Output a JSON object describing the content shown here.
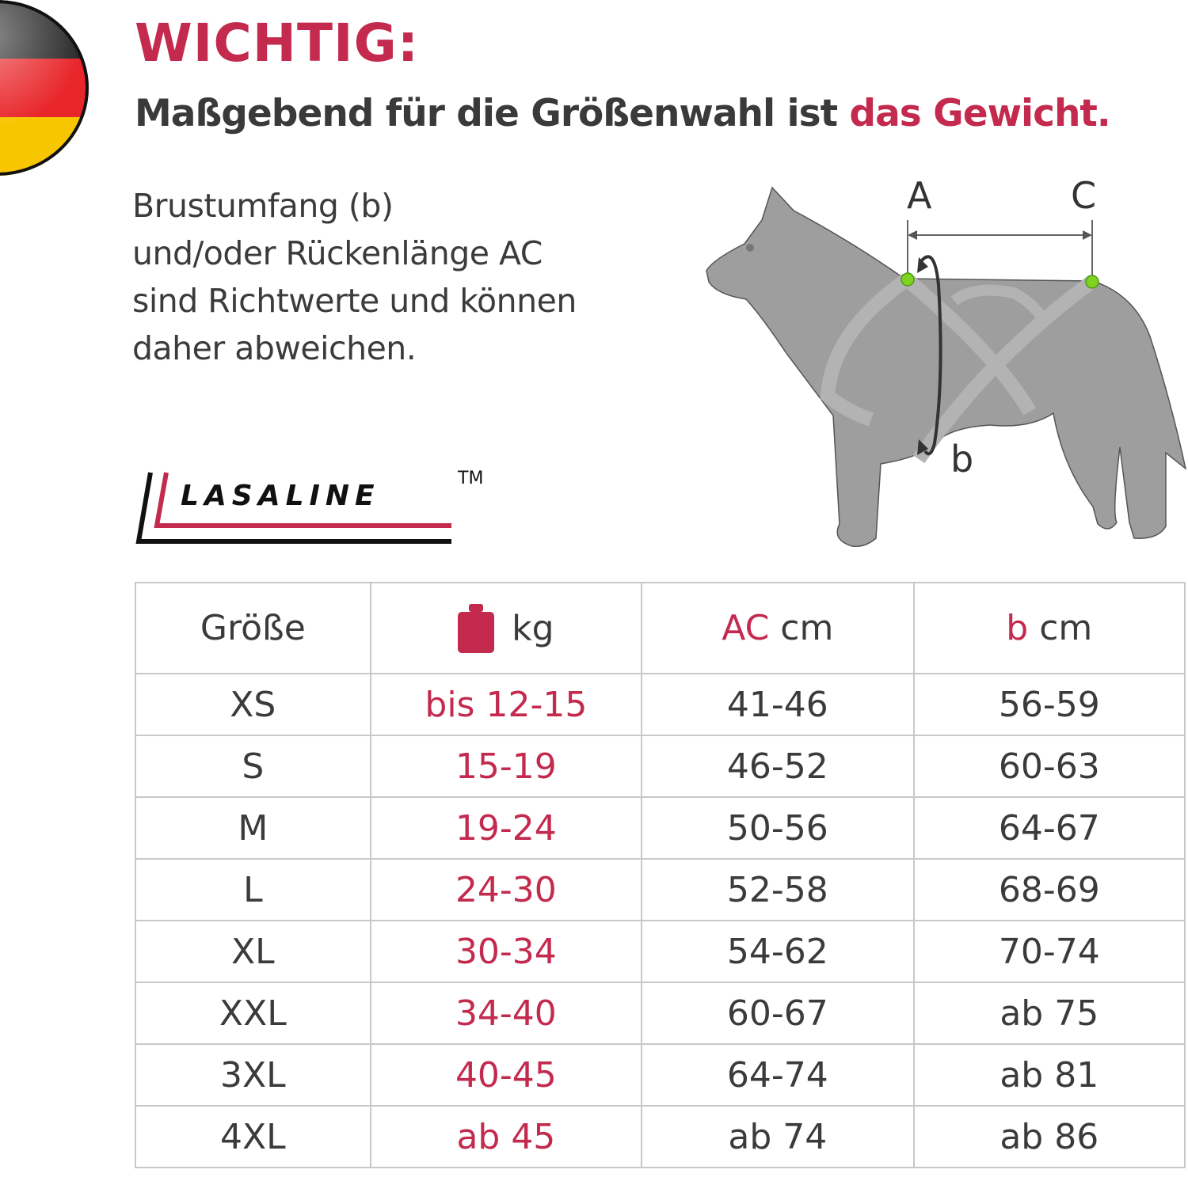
{
  "header": {
    "title": "WICHTIG:",
    "subtitle_prefix": "Maßgebend für die Größenwahl ist ",
    "subtitle_highlight": "das Gewicht."
  },
  "note": {
    "lines": [
      "Brustumfang (b)",
      "und/oder Rückenlänge AC",
      "sind Richtwerte und können",
      "daher abweichen."
    ]
  },
  "brand": {
    "name": "LASALINE",
    "trademark": "TM"
  },
  "diagram": {
    "label_a": "A",
    "label_c": "C",
    "label_b": "b"
  },
  "colors": {
    "accent": "#c32a4e",
    "text": "#3b3b3b",
    "marker": "#7ed321",
    "dog": "#9e9e9e"
  },
  "icons": {
    "flag": "germany-flag-icon",
    "weight": "weight-icon"
  },
  "table": {
    "headers": {
      "size": "Größe",
      "kg": "kg",
      "ac_prefix": "AC",
      "ac_unit": " cm",
      "b_prefix": "b",
      "b_unit": " cm"
    },
    "rows": [
      {
        "size": "XS",
        "kg": "bis 12-15",
        "ac": "41-46",
        "b": "56-59"
      },
      {
        "size": "S",
        "kg": "15-19",
        "ac": "46-52",
        "b": "60-63"
      },
      {
        "size": "M",
        "kg": "19-24",
        "ac": "50-56",
        "b": "64-67"
      },
      {
        "size": "L",
        "kg": "24-30",
        "ac": "52-58",
        "b": "68-69"
      },
      {
        "size": "XL",
        "kg": "30-34",
        "ac": "54-62",
        "b": "70-74"
      },
      {
        "size": "XXL",
        "kg": "34-40",
        "ac": "60-67",
        "b": "ab 75"
      },
      {
        "size": "3XL",
        "kg": "40-45",
        "ac": "64-74",
        "b": "ab 81"
      },
      {
        "size": "4XL",
        "kg": "ab 45",
        "ac": "ab 74",
        "b": "ab 86"
      }
    ]
  }
}
